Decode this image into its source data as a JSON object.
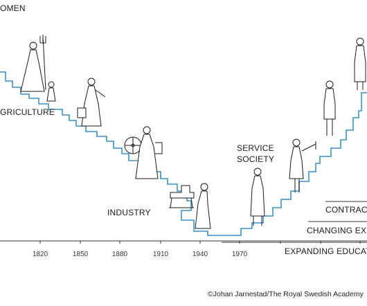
{
  "header": {
    "title_fragment": "OMEN"
  },
  "eras": {
    "agriculture": "GRICULTURE",
    "industry": "INDUSTRY",
    "service_line1": "SERVICE",
    "service_line2": "SOCIETY"
  },
  "bars": {
    "contraception": "CONTRACE",
    "changing": "CHANGING EXPE",
    "education": "EXPANDING EDUCATIO"
  },
  "axis": {
    "ticks": [
      "1820",
      "1850",
      "1880",
      "1910",
      "1940",
      "1970"
    ]
  },
  "credit": "©Johan Jarnestad/The Royal Swedish Academy",
  "colors": {
    "staircase": "#3a8fc7",
    "ink": "#1a1a1a",
    "figure_fill": "#ffffff"
  },
  "icons": [
    "farm-woman-pitchfork-icon",
    "child-icon",
    "woman-with-bucket-icon",
    "spinning-wheel-woman-icon",
    "sewing-machine-icon",
    "factory-worker-woman-icon",
    "service-worker-woman-icon",
    "teacher-woman-icon",
    "office-woman-icon",
    "professional-woman-icon"
  ]
}
